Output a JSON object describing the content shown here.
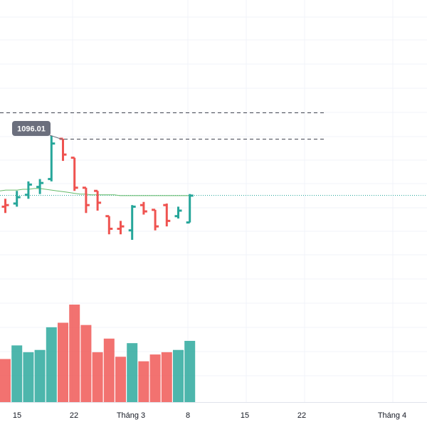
{
  "chart_data": {
    "type": "bar",
    "subtype": "ohlc-with-volume",
    "title": "",
    "xlabel": "",
    "ylabel": "",
    "grid": true,
    "x_tick_labels": [
      "15",
      "22",
      "Tháng 3",
      "8",
      "15",
      "22",
      "Tháng 4"
    ],
    "callout": {
      "label": "1096.01",
      "value": 1096.01
    },
    "dashed_levels": [
      1112,
      1096.01
    ],
    "current_price_level": 1026,
    "moving_average": [
      1030,
      1031,
      1031,
      1031,
      1032,
      1032,
      1033,
      1033,
      1032,
      1031,
      1030,
      1029,
      1028,
      1027,
      1026,
      1026,
      1025,
      1025,
      1025,
      1025,
      1025,
      1024,
      1024,
      1024,
      1024,
      1024,
      1024,
      1024,
      1024,
      1024,
      1024,
      1024,
      1024,
      1024
    ],
    "price_ylim": [
      895,
      1240
    ],
    "bars": [
      {
        "o": 1010,
        "h": 1020,
        "l": 1002,
        "c": 1012,
        "color": "red"
      },
      {
        "o": 1014,
        "h": 1030,
        "l": 1010,
        "c": 1022,
        "color": "green"
      },
      {
        "o": 1025,
        "h": 1042,
        "l": 1020,
        "c": 1038,
        "color": "green"
      },
      {
        "o": 1035,
        "h": 1045,
        "l": 1026,
        "c": 1040,
        "color": "green"
      },
      {
        "o": 1045,
        "h": 1100,
        "l": 1042,
        "c": 1090,
        "color": "green"
      },
      {
        "o": 1096,
        "h": 1096,
        "l": 1068,
        "c": 1076,
        "color": "red"
      },
      {
        "o": 1072,
        "h": 1072,
        "l": 1030,
        "c": 1034,
        "color": "red"
      },
      {
        "o": 1034,
        "h": 1034,
        "l": 1002,
        "c": 1012,
        "color": "red"
      },
      {
        "o": 1030,
        "h": 1030,
        "l": 1005,
        "c": 1015,
        "color": "red"
      },
      {
        "o": 998,
        "h": 998,
        "l": 975,
        "c": 982,
        "color": "red"
      },
      {
        "o": 982,
        "h": 992,
        "l": 975,
        "c": 985,
        "color": "red"
      },
      {
        "o": 980,
        "h": 1012,
        "l": 968,
        "c": 1010,
        "color": "green"
      },
      {
        "o": 1012,
        "h": 1016,
        "l": 1000,
        "c": 1004,
        "color": "red"
      },
      {
        "o": 1006,
        "h": 1006,
        "l": 980,
        "c": 985,
        "color": "red"
      },
      {
        "o": 1012,
        "h": 1014,
        "l": 985,
        "c": 992,
        "color": "red"
      },
      {
        "o": 998,
        "h": 1010,
        "l": 995,
        "c": 1005,
        "color": "green"
      },
      {
        "o": 990,
        "h": 1026,
        "l": 990,
        "c": 1024,
        "color": "green"
      }
    ],
    "volume_ylim": [
      0,
      43
    ],
    "volume": [
      {
        "v": 19,
        "color": "red"
      },
      {
        "v": 25,
        "color": "green"
      },
      {
        "v": 22,
        "color": "green"
      },
      {
        "v": 23,
        "color": "green"
      },
      {
        "v": 33,
        "color": "green"
      },
      {
        "v": 35,
        "color": "red"
      },
      {
        "v": 43,
        "color": "red"
      },
      {
        "v": 34,
        "color": "red"
      },
      {
        "v": 22,
        "color": "red"
      },
      {
        "v": 28,
        "color": "red"
      },
      {
        "v": 20,
        "color": "red"
      },
      {
        "v": 26,
        "color": "green"
      },
      {
        "v": 18,
        "color": "red"
      },
      {
        "v": 21,
        "color": "red"
      },
      {
        "v": 22,
        "color": "red"
      },
      {
        "v": 23,
        "color": "green"
      },
      {
        "v": 27,
        "color": "green"
      }
    ],
    "colors": {
      "up": "#26a69a",
      "down": "#ef5350",
      "moving_average": "#66bb6a",
      "current_price_line": "#26a69a",
      "grid": "#f0f3fa",
      "callout_bg": "#6b6f7d"
    }
  }
}
